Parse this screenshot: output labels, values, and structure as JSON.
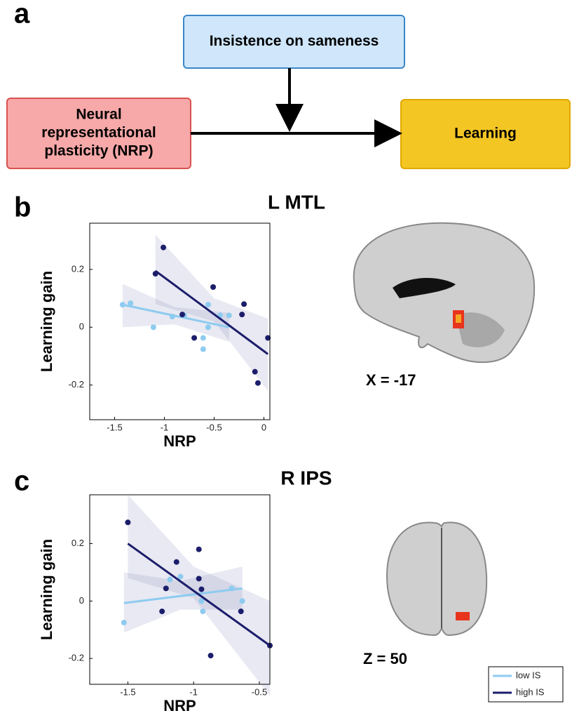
{
  "panels": [
    "a",
    "b",
    "c"
  ],
  "diagram": {
    "nodes": [
      {
        "lines": [
          "Insistence on sameness"
        ]
      },
      {
        "lines": [
          "Neural",
          "representational",
          "plasticity (NRP)"
        ]
      },
      {
        "lines": [
          "Learning"
        ]
      }
    ]
  },
  "images": [
    {
      "label": "X = -17"
    },
    {
      "label": "Z = 50"
    }
  ],
  "chart_data": [
    {
      "type": "scatter",
      "title": "L MTL",
      "x_label": "NRP",
      "y_label": "Learning gain",
      "xlim": [
        -1.75,
        0.06
      ],
      "ylim": [
        -0.32,
        0.36
      ],
      "xticks": [
        -1.5,
        -1,
        -0.5,
        0
      ],
      "yticks": [
        -0.2,
        0,
        0.2
      ],
      "series": [
        {
          "color": "#8ecbf0",
          "x": [
            -1.42,
            -1.34,
            -1.11,
            -0.92,
            -0.8,
            -0.56,
            -0.56,
            -0.44,
            -0.35,
            -0.61,
            -0.61
          ],
          "y": [
            0.078,
            0.083,
            0,
            0.037,
            0.041,
            0.078,
            0,
            0.041,
            0.041,
            -0.037,
            -0.076
          ],
          "fit": {
            "x": [
              -1.42,
              -0.35
            ],
            "y": [
              0.078,
              0
            ]
          },
          "band": {
            "x": [
              -1.42,
              -0.9,
              -0.35
            ],
            "lower": [
              0,
              0.01,
              -0.05
            ],
            "upper": [
              0.15,
              0.07,
              0.05
            ]
          }
        },
        {
          "color": "#1c1d6b",
          "x": [
            -1.09,
            -1.01,
            -0.82,
            -0.7,
            -0.51,
            -0.22,
            -0.2,
            -0.09,
            -0.06,
            0.04
          ],
          "y": [
            0.185,
            0.276,
            0.044,
            -0.037,
            0.139,
            0.044,
            0.08,
            -0.154,
            -0.193,
            -0.037
          ],
          "fit": {
            "x": [
              -1.09,
              0.04
            ],
            "y": [
              0.195,
              -0.093
            ]
          },
          "band": {
            "x": [
              -1.09,
              -0.5,
              0.04
            ],
            "lower": [
              0.08,
              0.02,
              -0.22
            ],
            "upper": [
              0.32,
              0.1,
              0.03
            ]
          }
        }
      ]
    },
    {
      "type": "scatter",
      "title": "R IPS",
      "x_label": "NRP",
      "y_label": "Learning gain",
      "xlim": [
        -1.79,
        -0.42
      ],
      "ylim": [
        -0.29,
        0.37
      ],
      "xticks": [
        -1.5,
        -1,
        -0.5
      ],
      "yticks": [
        -0.2,
        0,
        0.2
      ],
      "series": [
        {
          "name": "low IS",
          "color": "#8ecbf0",
          "x": [
            -1.53,
            -1.18,
            -1.1,
            -0.94,
            -0.93,
            -0.71,
            -0.63,
            -0.64
          ],
          "y": [
            -0.075,
            0.075,
            0.085,
            0,
            -0.036,
            0.044,
            0,
            -0.036
          ],
          "fit": {
            "x": [
              -1.53,
              -0.63
            ],
            "y": [
              -0.007,
              0.044
            ]
          },
          "band": {
            "x": [
              -1.53,
              -1.1,
              -0.63
            ],
            "lower": [
              -0.11,
              -0.03,
              -0.03
            ],
            "upper": [
              0.1,
              0.07,
              0.12
            ]
          }
        },
        {
          "name": "high IS",
          "color": "#1c1d6b",
          "x": [
            -1.5,
            -1.24,
            -1.21,
            -1.13,
            -0.96,
            -0.96,
            -0.94,
            -0.64,
            -0.87,
            -0.42
          ],
          "y": [
            0.274,
            -0.036,
            0.044,
            0.136,
            0.18,
            0.078,
            0.041,
            -0.036,
            -0.19,
            -0.155
          ],
          "fit": {
            "x": [
              -1.5,
              -0.42
            ],
            "y": [
              0.2,
              -0.155
            ]
          },
          "band": {
            "x": [
              -1.5,
              -1,
              -0.42
            ],
            "lower": [
              0.08,
              0.01,
              -0.33
            ],
            "upper": [
              0.37,
              0.12,
              0
            ]
          }
        }
      ]
    }
  ]
}
